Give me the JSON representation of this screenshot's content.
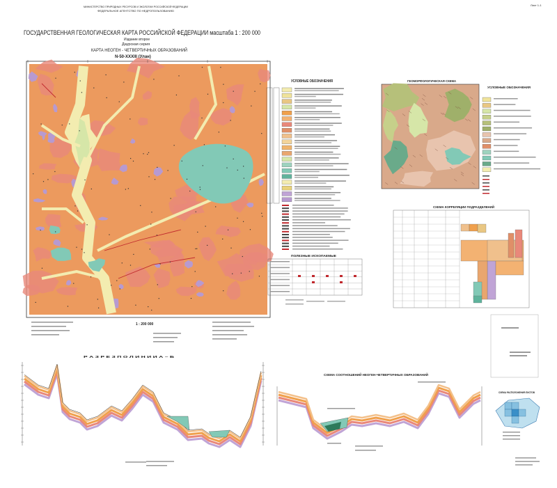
{
  "header": {
    "ministry": "МИНИСТЕРСТВО ПРИРОДНЫХ РЕСУРСОВ И ЭКОЛОГИИ РОССИЙСКОЙ ФЕДЕРАЦИИ",
    "agency": "ФЕДЕРАЛЬНОЕ АГЕНТСТВО ПО НЕДРОПОЛЬЗОВАНИЮ",
    "title": "ГОСУДАРСТВЕННАЯ ГЕОЛОГИЧЕСКАЯ КАРТА РОССИЙСКОЙ ФЕДЕРАЦИИ масштаба 1 : 200 000",
    "edition": "Издание второе",
    "series": "Даурская серия",
    "map_title": "КАРТА НЕОГЕН - ЧЕТВЕРТИЧНЫХ ОБРАЗОВАНИЙ",
    "sheet": "N-50-XXXIII (Улан)",
    "sheet_number": "Лист 1-1"
  },
  "legend": {
    "title": "УСЛОВНЫЕ ОБОЗНАЧЕНИЯ"
  },
  "minerals": {
    "title": "ПОЛЕЗНЫЕ ИСКОПАЕМЫЕ"
  },
  "scale": "1 : 200 000",
  "geomorph": {
    "title": "ГЕОМОРФОЛОГИЧЕСКАЯ СХЕМА",
    "legend_title": "УСЛОВНЫЕ ОБОЗНАЧЕНИЯ"
  },
  "correlation": {
    "title": "СХЕМА КОРРЕЛЯЦИИ ПОДРАЗДЕЛЕНИЙ"
  },
  "section": {
    "title": "Р А З Р Е З   П О   Л И Н И И   А – Б"
  },
  "relations": {
    "title": "СХЕМА СООТНОШЕНИЙ НЕОГЕН-ЧЕТВЕРТИЧНЫХ ОБРАЗОВАНИЙ"
  },
  "index_map": {
    "title": "СХЕМА РАСПОЛОЖЕНИЯ ЛИСТОВ"
  }
}
